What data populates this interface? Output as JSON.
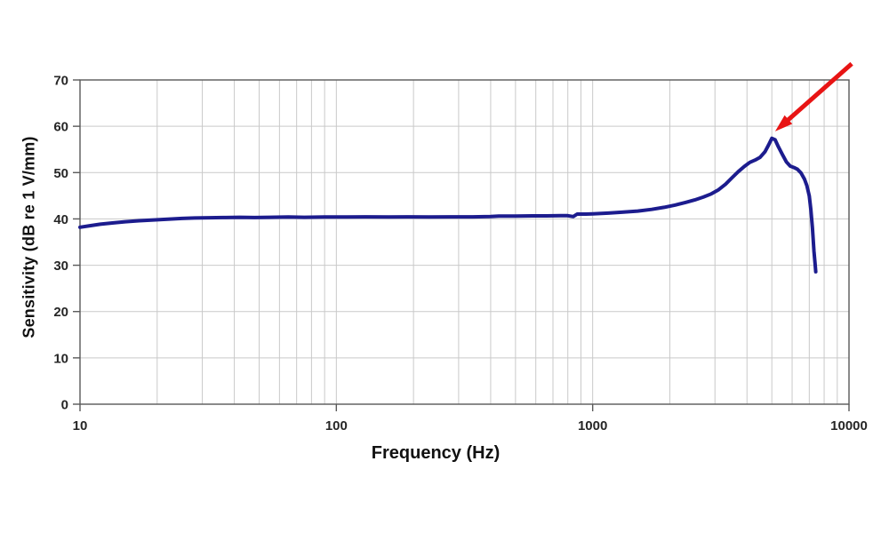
{
  "figure": {
    "background_color": "#ffffff"
  },
  "chart_data": {
    "type": "line",
    "title": "",
    "xlabel": "Frequency (Hz)",
    "ylabel": "Sensitivity (dB re 1 V/mm)",
    "x_scale": "log",
    "xlim": [
      10,
      10000
    ],
    "ylim": [
      0,
      70
    ],
    "x_ticks": [
      10,
      100,
      1000,
      10000
    ],
    "x_tick_labels": [
      "10",
      "100",
      "1000",
      "10000"
    ],
    "y_ticks": [
      0,
      10,
      20,
      30,
      40,
      50,
      60,
      70
    ],
    "grid": {
      "major_horizontal": true,
      "minor_vertical_log": true,
      "color": "#c9c9c9",
      "axis_color": "#595959"
    },
    "legend": "none",
    "series": [
      {
        "name": "sensitivity-frequency-response",
        "color": "#1c1c8e",
        "stroke_width": 4,
        "points": [
          [
            10,
            38.2
          ],
          [
            11,
            38.55
          ],
          [
            12,
            38.85
          ],
          [
            13.5,
            39.15
          ],
          [
            15,
            39.4
          ],
          [
            17,
            39.6
          ],
          [
            19,
            39.75
          ],
          [
            22,
            39.95
          ],
          [
            25,
            40.1
          ],
          [
            28,
            40.2
          ],
          [
            32,
            40.25
          ],
          [
            36,
            40.3
          ],
          [
            42,
            40.35
          ],
          [
            48,
            40.3
          ],
          [
            55,
            40.35
          ],
          [
            65,
            40.4
          ],
          [
            75,
            40.35
          ],
          [
            90,
            40.4
          ],
          [
            110,
            40.4
          ],
          [
            130,
            40.45
          ],
          [
            160,
            40.4
          ],
          [
            190,
            40.45
          ],
          [
            230,
            40.4
          ],
          [
            280,
            40.45
          ],
          [
            340,
            40.45
          ],
          [
            400,
            40.5
          ],
          [
            430,
            40.6
          ],
          [
            500,
            40.6
          ],
          [
            580,
            40.65
          ],
          [
            660,
            40.65
          ],
          [
            750,
            40.7
          ],
          [
            800,
            40.7
          ],
          [
            840,
            40.5
          ],
          [
            870,
            41.05
          ],
          [
            940,
            41.05
          ],
          [
            1000,
            41.1
          ],
          [
            1150,
            41.25
          ],
          [
            1300,
            41.45
          ],
          [
            1500,
            41.7
          ],
          [
            1700,
            42.05
          ],
          [
            1900,
            42.5
          ],
          [
            2100,
            43.0
          ],
          [
            2300,
            43.55
          ],
          [
            2500,
            44.1
          ],
          [
            2700,
            44.7
          ],
          [
            2900,
            45.4
          ],
          [
            3100,
            46.3
          ],
          [
            3300,
            47.5
          ],
          [
            3500,
            48.9
          ],
          [
            3700,
            50.2
          ],
          [
            3900,
            51.3
          ],
          [
            4100,
            52.2
          ],
          [
            4300,
            52.7
          ],
          [
            4500,
            53.3
          ],
          [
            4700,
            54.5
          ],
          [
            4850,
            55.9
          ],
          [
            5000,
            57.4
          ],
          [
            5150,
            57.1
          ],
          [
            5300,
            55.6
          ],
          [
            5500,
            53.9
          ],
          [
            5700,
            52.3
          ],
          [
            5900,
            51.4
          ],
          [
            6100,
            51.1
          ],
          [
            6300,
            50.7
          ],
          [
            6500,
            49.9
          ],
          [
            6700,
            48.6
          ],
          [
            6850,
            47.2
          ],
          [
            7000,
            45.0
          ],
          [
            7100,
            42.0
          ],
          [
            7200,
            38.0
          ],
          [
            7300,
            33.0
          ],
          [
            7380,
            30.0
          ],
          [
            7420,
            28.6
          ]
        ]
      }
    ],
    "annotations": [
      {
        "type": "arrow",
        "color": "#e81414",
        "from": {
          "freq": 10250,
          "db": 73.5
        },
        "to": {
          "freq": 5150,
          "db": 58.9
        },
        "points_at": {
          "freq": 5000,
          "db": 57.4
        }
      }
    ]
  }
}
